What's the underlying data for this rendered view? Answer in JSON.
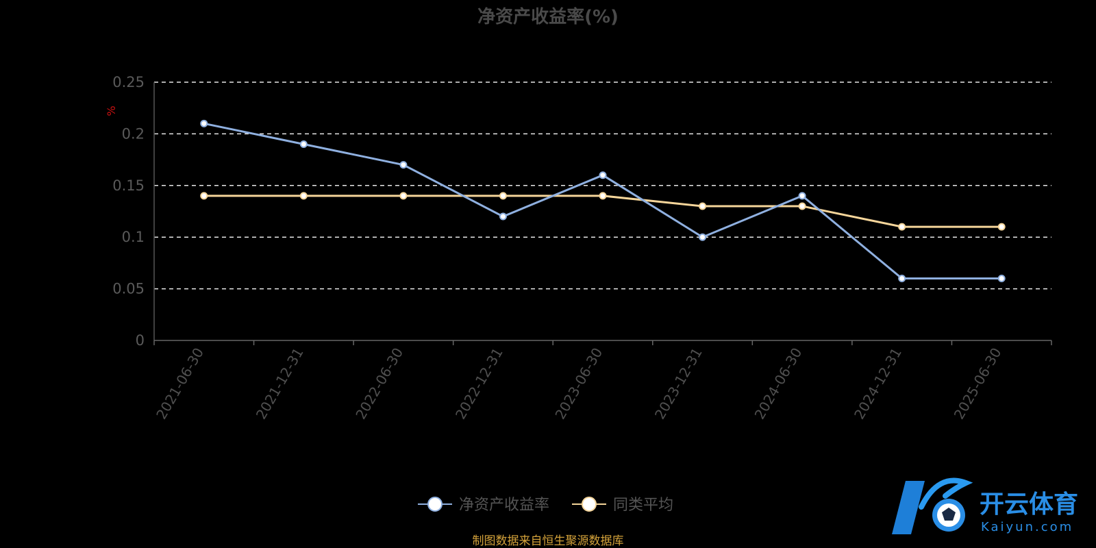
{
  "chart_data": {
    "type": "line",
    "title": "净资产收益率(%)",
    "ylabel": "%",
    "ylim": [
      0,
      0.25
    ],
    "yticks": [
      "0",
      "0.05",
      "0.1",
      "0.15",
      "0.2",
      "0.25"
    ],
    "grid": true,
    "legend_position": "bottom-center",
    "categories": [
      "2021-06-30",
      "2021-12-31",
      "2022-06-30",
      "2022-12-31",
      "2023-06-30",
      "2023-12-31",
      "2024-06-30",
      "2024-12-31",
      "2025-06-30"
    ],
    "series": [
      {
        "name": "净资产收益率",
        "color": "#8fb0e0",
        "values": [
          0.21,
          0.19,
          0.17,
          0.12,
          0.16,
          0.1,
          0.14,
          0.06,
          0.06
        ]
      },
      {
        "name": "同类平均",
        "color": "#f5d59a",
        "values": [
          0.14,
          0.14,
          0.14,
          0.14,
          0.14,
          0.13,
          0.13,
          0.11,
          0.11
        ]
      }
    ]
  },
  "footer": {
    "source": "制图数据来自恒生聚源数据库"
  },
  "logo": {
    "text": "开云体育",
    "sub": "Kaiyun.com",
    "icon": "kaiyun-logo-icon"
  }
}
